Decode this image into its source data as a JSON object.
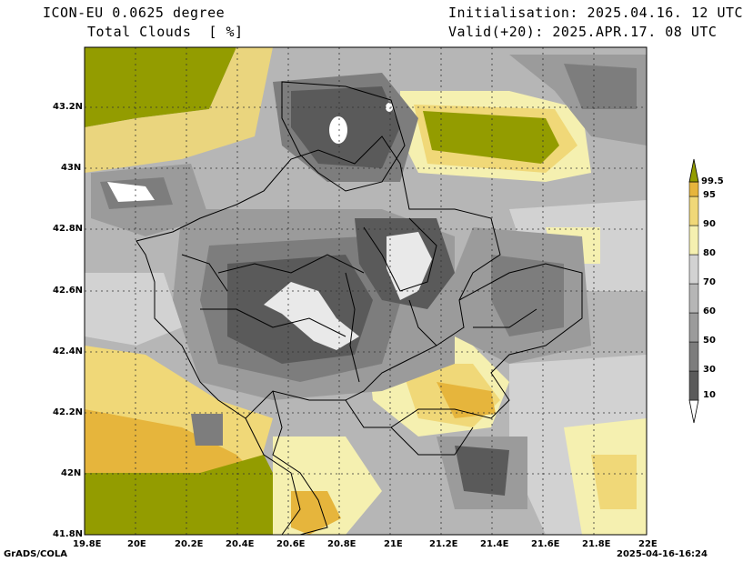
{
  "header": {
    "model": "ICON-EU 0.0625 degree",
    "variable": "Total Clouds  [ %]",
    "init": "Initialisation: 2025.04.16. 12 UTC",
    "valid": "Valid(+20): 2025.APR.17. 08 UTC"
  },
  "map": {
    "lat_ticks": [
      "43.2N",
      "43N",
      "42.8N",
      "42.6N",
      "42.4N",
      "42.2N",
      "42N",
      "41.8N"
    ],
    "lon_ticks": [
      "19.8E",
      "20E",
      "20.2E",
      "20.4E",
      "20.6E",
      "20.8E",
      "21E",
      "21.2E",
      "21.4E",
      "21.6E",
      "21.8E",
      "22E"
    ]
  },
  "colorbar": {
    "levels": [
      "10",
      "30",
      "50",
      "60",
      "70",
      "80",
      "90",
      "95",
      "99.5"
    ],
    "colors": [
      "#ffffff",
      "#5a5a5a",
      "#7d7d7d",
      "#9b9b9b",
      "#b6b6b6",
      "#d2d2d2",
      "#f5f0b0",
      "#f0d878",
      "#e6b53c",
      "#939c00"
    ]
  },
  "footer": {
    "left": "GrADS/COLA",
    "right": "2025-04-16-16:24"
  }
}
